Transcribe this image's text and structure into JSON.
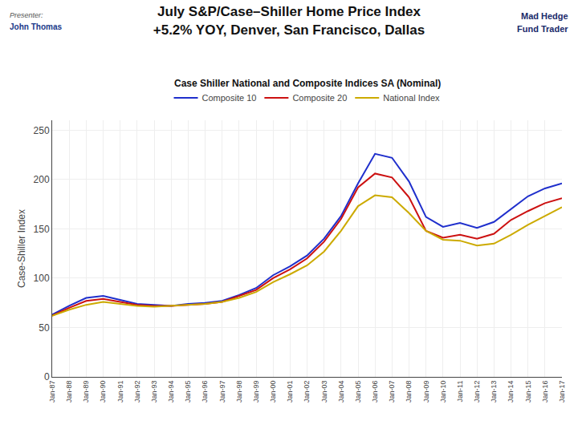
{
  "chart_data": {
    "type": "line",
    "title": "July S&P/Case–Shiller Home Price Index",
    "subtitle": "+5.2% YOY, Denver, San Francisco, Dallas",
    "annotations": [
      "Case Shiller National and Composite Indices SA (Nominal)",
      "Presenter:",
      "John Thomas",
      "Mad Hedge",
      "Fund Trader"
    ],
    "y_label": "Case-Shiller Index",
    "categories": [
      "Jan-87",
      "Jan-88",
      "Jan-89",
      "Jan-90",
      "Jan-91",
      "Jan-92",
      "Jan-93",
      "Jan-94",
      "Jan-95",
      "Jan-96",
      "Jan-97",
      "Jan-98",
      "Jan-99",
      "Jan-00",
      "Jan-01",
      "Jan-02",
      "Jan-03",
      "Jan-04",
      "Jan-05",
      "Jan-06",
      "Jan-07",
      "Jan-08",
      "Jan-09",
      "Jan-10",
      "Jan-11",
      "Jan-12",
      "Jan-13",
      "Jan-14",
      "Jan-15",
      "Jan-16",
      "Jan-17"
    ],
    "series": [
      {
        "name": "Composite 10",
        "color": "#1f2fcc",
        "values": [
          63,
          72,
          80,
          82,
          78,
          74,
          73,
          72,
          74,
          75,
          77,
          83,
          90,
          103,
          112,
          123,
          140,
          163,
          196,
          226,
          222,
          198,
          162,
          152,
          156,
          151,
          157,
          170,
          183,
          191,
          196
        ]
      },
      {
        "name": "Composite 20",
        "color": "#cc1111",
        "values": [
          62,
          70,
          77,
          79,
          76,
          73,
          72,
          72,
          73,
          74,
          76,
          82,
          88,
          100,
          109,
          120,
          137,
          160,
          192,
          206,
          202,
          182,
          148,
          141,
          144,
          140,
          145,
          159,
          168,
          176,
          181
        ]
      },
      {
        "name": "National Index",
        "color": "#ccaa00",
        "values": [
          62,
          68,
          73,
          76,
          74,
          72,
          71,
          72,
          73,
          74,
          76,
          80,
          86,
          96,
          104,
          113,
          127,
          148,
          173,
          184,
          182,
          166,
          148,
          139,
          138,
          133,
          135,
          144,
          154,
          163,
          172
        ]
      }
    ],
    "ylim": [
      0,
      260
    ],
    "yticks": [
      0,
      50,
      100,
      150,
      200,
      250
    ],
    "grid": true,
    "legend": "top"
  }
}
